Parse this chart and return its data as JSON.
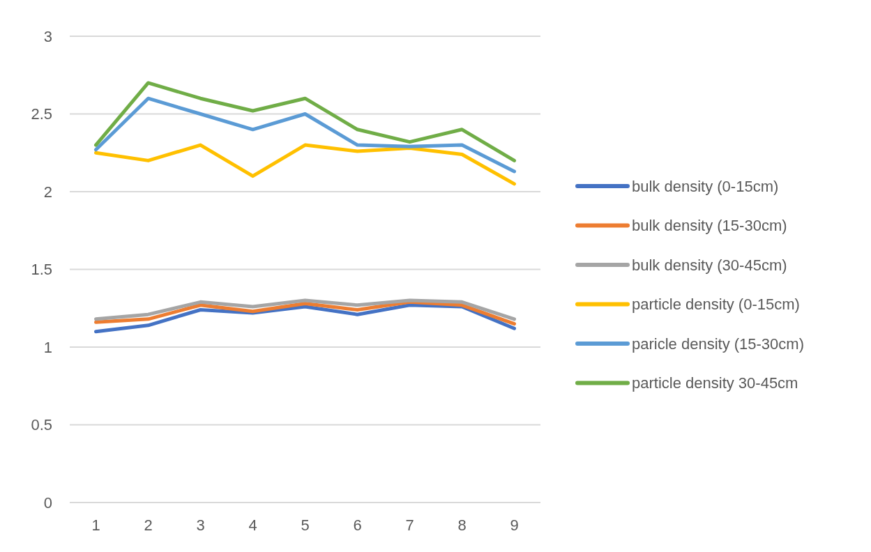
{
  "chart_data": {
    "type": "line",
    "categories": [
      "1",
      "2",
      "3",
      "4",
      "5",
      "6",
      "7",
      "8",
      "9"
    ],
    "ylim": [
      0,
      3
    ],
    "yticks": [
      0,
      0.5,
      1,
      1.5,
      2,
      2.5,
      3
    ],
    "grid": "y",
    "legend": "right",
    "marker": "none",
    "line_style": "solid",
    "series": [
      {
        "name": "bulk density (0-15cm)",
        "color": "#4472c4",
        "values": [
          1.1,
          1.14,
          1.24,
          1.22,
          1.26,
          1.21,
          1.27,
          1.26,
          1.12
        ]
      },
      {
        "name": "bulk density (15-30cm)",
        "color": "#ed7d31",
        "values": [
          1.16,
          1.18,
          1.27,
          1.23,
          1.28,
          1.24,
          1.29,
          1.27,
          1.15
        ]
      },
      {
        "name": "bulk density (30-45cm)",
        "color": "#a5a5a5",
        "values": [
          1.18,
          1.21,
          1.29,
          1.26,
          1.3,
          1.27,
          1.3,
          1.29,
          1.18
        ]
      },
      {
        "name": "particle density (0-15cm)",
        "color": "#ffc000",
        "values": [
          2.25,
          2.2,
          2.3,
          2.1,
          2.3,
          2.26,
          2.28,
          2.24,
          2.05
        ]
      },
      {
        "name": "paricle density (15-30cm)",
        "color": "#5b9bd5",
        "values": [
          2.27,
          2.6,
          2.5,
          2.4,
          2.5,
          2.3,
          2.29,
          2.3,
          2.13
        ]
      },
      {
        "name": "particle density 30-45cm",
        "color": "#70ad47",
        "values": [
          2.3,
          2.7,
          2.6,
          2.52,
          2.6,
          2.4,
          2.32,
          2.4,
          2.2
        ]
      }
    ]
  }
}
